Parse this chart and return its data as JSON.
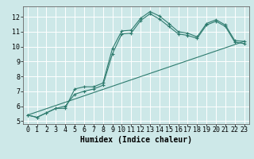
{
  "xlabel": "Humidex (Indice chaleur)",
  "background_color": "#cde8e8",
  "grid_color": "#ffffff",
  "line_color": "#2e7b6e",
  "xlim": [
    -0.5,
    23.5
  ],
  "ylim": [
    4.8,
    12.7
  ],
  "xticks": [
    0,
    1,
    2,
    3,
    4,
    5,
    6,
    7,
    8,
    9,
    10,
    11,
    12,
    13,
    14,
    15,
    16,
    17,
    18,
    19,
    20,
    21,
    22,
    23
  ],
  "yticks": [
    5,
    6,
    7,
    8,
    9,
    10,
    11,
    12
  ],
  "line1_x": [
    0,
    1,
    2,
    3,
    4,
    5,
    6,
    7,
    8,
    9,
    10,
    11,
    12,
    13,
    14,
    15,
    16,
    17,
    18,
    19,
    20,
    21,
    22,
    23
  ],
  "line1_y": [
    5.4,
    5.25,
    5.55,
    5.85,
    5.85,
    7.15,
    7.3,
    7.3,
    7.55,
    9.85,
    11.05,
    11.1,
    11.9,
    12.35,
    12.05,
    11.55,
    11.0,
    10.9,
    10.65,
    11.55,
    11.8,
    11.45,
    10.4,
    10.35
  ],
  "line2_x": [
    0,
    1,
    2,
    3,
    4,
    5,
    6,
    7,
    8,
    9,
    10,
    11,
    12,
    13,
    14,
    15,
    16,
    17,
    18,
    19,
    20,
    21,
    22,
    23
  ],
  "line2_y": [
    5.4,
    5.25,
    5.55,
    5.85,
    6.0,
    6.8,
    7.0,
    7.15,
    7.4,
    9.5,
    10.85,
    10.9,
    11.75,
    12.2,
    11.85,
    11.35,
    10.85,
    10.75,
    10.55,
    11.45,
    11.7,
    11.35,
    10.3,
    10.2
  ],
  "line3_x": [
    0,
    23
  ],
  "line3_y": [
    5.4,
    10.35
  ],
  "fontsize_xlabel": 7,
  "fontsize_ticks": 6
}
